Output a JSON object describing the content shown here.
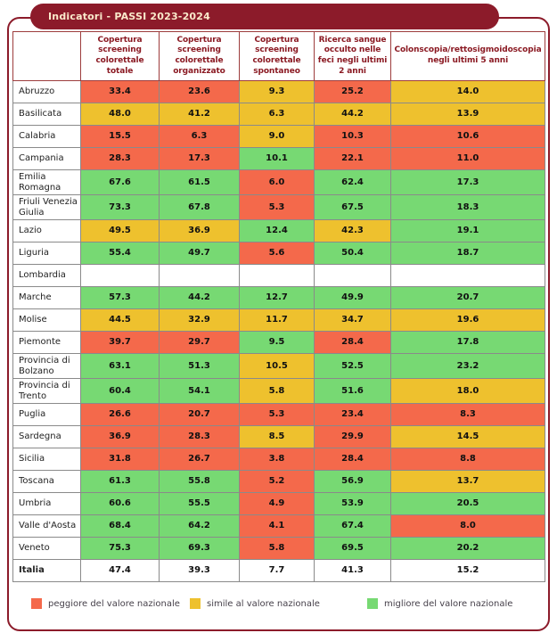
{
  "chart_data": {
    "type": "table",
    "title": "Indicatori - PASSI 2023-2024",
    "columns": [
      "",
      "Copertura screening colorettale totale",
      "Copertura screening colorettale organizzato",
      "Copertura screening colorettale spontaneo",
      "Ricerca sangue occulto nelle feci negli ultimi 2 anni",
      "Colonscopia/rettosigmoidoscopia negli ultimi 5 anni"
    ],
    "rows": [
      {
        "region": "Abruzzo",
        "values": [
          "33.4",
          "23.6",
          "9.3",
          "25.2",
          "14.0"
        ],
        "levels": [
          "worse",
          "worse",
          "similar",
          "worse",
          "similar"
        ]
      },
      {
        "region": "Basilicata",
        "values": [
          "48.0",
          "41.2",
          "6.3",
          "44.2",
          "13.9"
        ],
        "levels": [
          "similar",
          "similar",
          "similar",
          "similar",
          "similar"
        ]
      },
      {
        "region": "Calabria",
        "values": [
          "15.5",
          "6.3",
          "9.0",
          "10.3",
          "10.6"
        ],
        "levels": [
          "worse",
          "worse",
          "similar",
          "worse",
          "worse"
        ]
      },
      {
        "region": "Campania",
        "values": [
          "28.3",
          "17.3",
          "10.1",
          "22.1",
          "11.0"
        ],
        "levels": [
          "worse",
          "worse",
          "better",
          "worse",
          "worse"
        ]
      },
      {
        "region": "Emilia Romagna",
        "values": [
          "67.6",
          "61.5",
          "6.0",
          "62.4",
          "17.3"
        ],
        "levels": [
          "better",
          "better",
          "worse",
          "better",
          "better"
        ]
      },
      {
        "region": "Friuli Venezia Giulia",
        "values": [
          "73.3",
          "67.8",
          "5.3",
          "67.5",
          "18.3"
        ],
        "levels": [
          "better",
          "better",
          "worse",
          "better",
          "better"
        ]
      },
      {
        "region": "Lazio",
        "values": [
          "49.5",
          "36.9",
          "12.4",
          "42.3",
          "19.1"
        ],
        "levels": [
          "similar",
          "similar",
          "better",
          "similar",
          "better"
        ]
      },
      {
        "region": "Liguria",
        "values": [
          "55.4",
          "49.7",
          "5.6",
          "50.4",
          "18.7"
        ],
        "levels": [
          "better",
          "better",
          "worse",
          "better",
          "better"
        ]
      },
      {
        "region": "Lombardia",
        "values": [
          "",
          "",
          "",
          "",
          ""
        ],
        "levels": [
          "none",
          "none",
          "none",
          "none",
          "none"
        ]
      },
      {
        "region": "Marche",
        "values": [
          "57.3",
          "44.2",
          "12.7",
          "49.9",
          "20.7"
        ],
        "levels": [
          "better",
          "better",
          "better",
          "better",
          "better"
        ]
      },
      {
        "region": "Molise",
        "values": [
          "44.5",
          "32.9",
          "11.7",
          "34.7",
          "19.6"
        ],
        "levels": [
          "similar",
          "similar",
          "similar",
          "similar",
          "similar"
        ]
      },
      {
        "region": "Piemonte",
        "values": [
          "39.7",
          "29.7",
          "9.5",
          "28.4",
          "17.8"
        ],
        "levels": [
          "worse",
          "worse",
          "better",
          "worse",
          "better"
        ]
      },
      {
        "region": "Provincia di Bolzano",
        "values": [
          "63.1",
          "51.3",
          "10.5",
          "52.5",
          "23.2"
        ],
        "levels": [
          "better",
          "better",
          "similar",
          "better",
          "better"
        ]
      },
      {
        "region": "Provincia di Trento",
        "values": [
          "60.4",
          "54.1",
          "5.8",
          "51.6",
          "18.0"
        ],
        "levels": [
          "better",
          "better",
          "similar",
          "better",
          "similar"
        ]
      },
      {
        "region": "Puglia",
        "values": [
          "26.6",
          "20.7",
          "5.3",
          "23.4",
          "8.3"
        ],
        "levels": [
          "worse",
          "worse",
          "worse",
          "worse",
          "worse"
        ]
      },
      {
        "region": "Sardegna",
        "values": [
          "36.9",
          "28.3",
          "8.5",
          "29.9",
          "14.5"
        ],
        "levels": [
          "worse",
          "worse",
          "similar",
          "worse",
          "similar"
        ]
      },
      {
        "region": "Sicilia",
        "values": [
          "31.8",
          "26.7",
          "3.8",
          "28.4",
          "8.8"
        ],
        "levels": [
          "worse",
          "worse",
          "worse",
          "worse",
          "worse"
        ]
      },
      {
        "region": "Toscana",
        "values": [
          "61.3",
          "55.8",
          "5.2",
          "56.9",
          "13.7"
        ],
        "levels": [
          "better",
          "better",
          "worse",
          "better",
          "similar"
        ]
      },
      {
        "region": "Umbria",
        "values": [
          "60.6",
          "55.5",
          "4.9",
          "53.9",
          "20.5"
        ],
        "levels": [
          "better",
          "better",
          "worse",
          "better",
          "better"
        ]
      },
      {
        "region": "Valle d'Aosta",
        "values": [
          "68.4",
          "64.2",
          "4.1",
          "67.4",
          "8.0"
        ],
        "levels": [
          "better",
          "better",
          "worse",
          "better",
          "worse"
        ]
      },
      {
        "region": "Veneto",
        "values": [
          "75.3",
          "69.3",
          "5.8",
          "69.5",
          "20.2"
        ],
        "levels": [
          "better",
          "better",
          "worse",
          "better",
          "better"
        ]
      },
      {
        "region": "Italia",
        "values": [
          "47.4",
          "39.3",
          "7.7",
          "41.3",
          "15.2"
        ],
        "levels": [
          "none",
          "none",
          "none",
          "none",
          "none"
        ],
        "total": true
      }
    ],
    "legend": [
      {
        "label": "peggiore del valore nazionale",
        "level": "worse",
        "color": "#f4694b"
      },
      {
        "label": "simile al valore nazionale",
        "level": "similar",
        "color": "#eec12e"
      },
      {
        "label": "migliore del valore nazionale",
        "level": "better",
        "color": "#77d973"
      }
    ],
    "level_colors": {
      "worse": "#f4694b",
      "similar": "#eec12e",
      "better": "#77d973",
      "none": "#ffffff"
    },
    "accent_colors": {
      "frame": "#8c1b2a",
      "title_text": "#faeacb",
      "header_border": "#9d3c3c",
      "header_text": "#8b1a23",
      "body_border": "#8a8a8a"
    }
  }
}
